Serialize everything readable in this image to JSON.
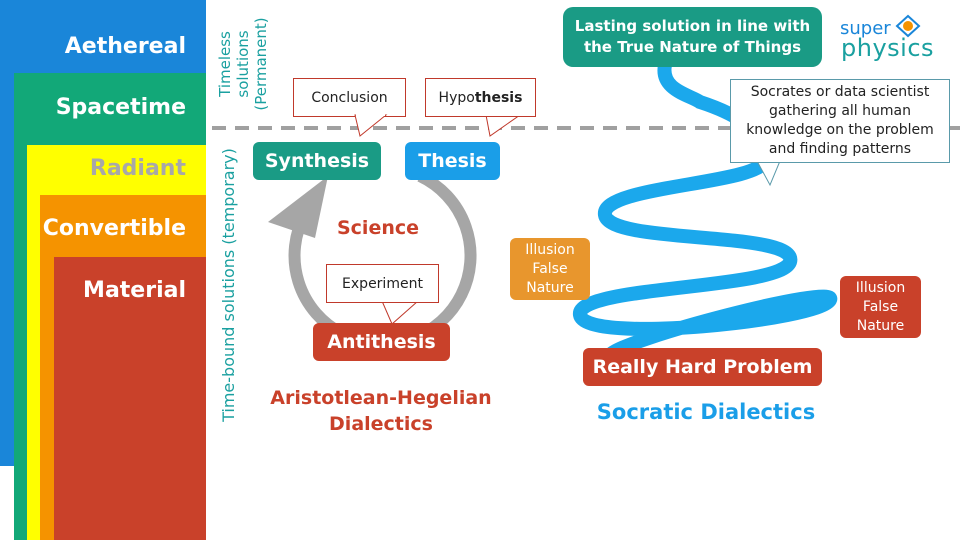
{
  "layers": [
    {
      "key": "aethereal",
      "label": "Aethereal",
      "color": "#1a86d9",
      "text_color": "#ffffff"
    },
    {
      "key": "spacetime",
      "label": "Spacetime",
      "color": "#12a878",
      "text_color": "#ffffff"
    },
    {
      "key": "radiant",
      "label": "Radiant",
      "color": "#ffff00",
      "text_color": "#a8a8a8"
    },
    {
      "key": "convertible",
      "label": "Convertible",
      "color": "#f59300",
      "text_color": "#ffffff"
    },
    {
      "key": "material",
      "label": "Material",
      "color": "#c9412a",
      "text_color": "#ffffff"
    }
  ],
  "side_labels": {
    "timeless_line1": "Timeless",
    "timeless_line2": "solutions",
    "timeless_line3": "(Permanent)",
    "timebound": "Time-bound solutions (temporary)"
  },
  "aristotelian": {
    "conclusion": "Conclusion",
    "hypothesis_prefix": "Hypo",
    "hypothesis_bold": "thesis",
    "synthesis": "Synthesis",
    "thesis": "Thesis",
    "science": "Science",
    "experiment": "Experiment",
    "antithesis": "Antithesis",
    "caption_line1": "Aristotlean-Hegelian",
    "caption_line2": "Dialectics"
  },
  "socratic": {
    "lasting_line1": "Lasting solution in line with",
    "lasting_line2": "the True Nature of Things",
    "socrates_line1": "Socrates or data scientist",
    "socrates_line2": "gathering all human",
    "socrates_line3": "knowledge on the problem",
    "socrates_line4": "and finding patterns",
    "illusion_left": [
      "Illusion",
      "False",
      "Nature"
    ],
    "illusion_right": [
      "Illusion",
      "False",
      "Nature"
    ],
    "problem": "Really Hard Problem",
    "caption": "Socratic Dialectics"
  },
  "logo": {
    "line1": "super",
    "line2": "physics"
  },
  "colors": {
    "teal": "#1a9b85",
    "blue": "#1a9ee8",
    "red": "#c9412a",
    "orange": "#e8962d",
    "spring": "#1ba8ec",
    "dash": "#a0a0a0",
    "circle": "#a6a6a6",
    "callout_border": "#c0392b",
    "socratic_border": "#5a9aaa",
    "teal_text": "#1aa0a0"
  }
}
